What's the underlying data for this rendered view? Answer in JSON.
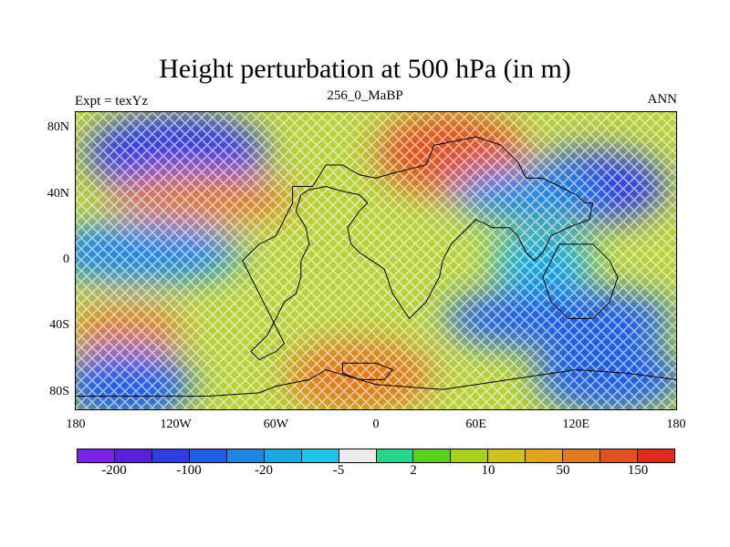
{
  "title": "Height perturbation at 500 hPa (in m)",
  "subtitle_left": "Expt = texYz",
  "subtitle_center": "256_0_MaBP",
  "subtitle_right": "ANN",
  "y_axis": {
    "ticks": [
      "80N",
      "40N",
      "0",
      "40S",
      "80S"
    ],
    "values": [
      80,
      40,
      0,
      -40,
      -80
    ],
    "range": [
      -90,
      90
    ]
  },
  "x_axis": {
    "ticks": [
      "180",
      "120W",
      "60W",
      "0",
      "60E",
      "120E",
      "180"
    ],
    "values": [
      -180,
      -120,
      -60,
      0,
      60,
      120,
      180
    ],
    "range": [
      -180,
      180
    ]
  },
  "colorbar": {
    "colors": [
      "#7a22e6",
      "#5a1fd8",
      "#2f3ce0",
      "#1f5ee6",
      "#1f86e6",
      "#19a9e0",
      "#1fc3e6",
      "#ececec",
      "#26d68a",
      "#5ad01f",
      "#a8d01f",
      "#cfc21f",
      "#e0a21f",
      "#e07a1f",
      "#e0521f",
      "#e02a1f"
    ],
    "labels": [
      "-200",
      "-100",
      "-20",
      "-5",
      "2",
      "10",
      "50",
      "150"
    ]
  },
  "field_blobs": [
    {
      "lon": -120,
      "lat": 65,
      "value": -110,
      "width": 55,
      "height": 16
    },
    {
      "lon": -105,
      "lat": 38,
      "value": 70,
      "width": 55,
      "height": 10
    },
    {
      "lon": -140,
      "lat": 5,
      "value": -40,
      "width": 60,
      "height": 12
    },
    {
      "lon": -150,
      "lat": -43,
      "value": 60,
      "width": 35,
      "height": 10
    },
    {
      "lon": -150,
      "lat": -75,
      "value": -60,
      "width": 40,
      "height": 14
    },
    {
      "lon": -10,
      "lat": -70,
      "value": 90,
      "width": 45,
      "height": 14
    },
    {
      "lon": 45,
      "lat": 65,
      "value": 150,
      "width": 45,
      "height": 16
    },
    {
      "lon": 130,
      "lat": 45,
      "value": -130,
      "width": 45,
      "height": 14
    },
    {
      "lon": 90,
      "lat": 40,
      "value": -40,
      "width": 45,
      "height": 10
    },
    {
      "lon": 110,
      "lat": -35,
      "value": -50,
      "width": 70,
      "height": 12
    },
    {
      "lon": 140,
      "lat": -70,
      "value": -70,
      "width": 45,
      "height": 14
    },
    {
      "lon": 100,
      "lat": 0,
      "value": -15,
      "width": 30,
      "height": 12
    }
  ],
  "continent_outlines": [
    [
      [
        -50,
        45
      ],
      [
        -38,
        45
      ],
      [
        -30,
        58
      ],
      [
        -20,
        58
      ],
      [
        -10,
        52
      ],
      [
        0,
        50
      ],
      [
        10,
        53
      ],
      [
        30,
        58
      ],
      [
        35,
        70
      ],
      [
        60,
        75
      ],
      [
        75,
        70
      ],
      [
        85,
        60
      ],
      [
        90,
        50
      ],
      [
        100,
        50
      ],
      [
        110,
        45
      ],
      [
        120,
        40
      ],
      [
        125,
        35
      ],
      [
        130,
        35
      ],
      [
        128,
        25
      ],
      [
        115,
        20
      ],
      [
        105,
        15
      ],
      [
        100,
        5
      ],
      [
        95,
        0
      ],
      [
        90,
        5
      ],
      [
        85,
        15
      ],
      [
        80,
        20
      ],
      [
        70,
        20
      ],
      [
        60,
        25
      ],
      [
        50,
        15
      ],
      [
        45,
        10
      ],
      [
        40,
        0
      ],
      [
        38,
        -10
      ],
      [
        30,
        -25
      ],
      [
        20,
        -35
      ],
      [
        10,
        -20
      ],
      [
        5,
        -5
      ],
      [
        -10,
        5
      ],
      [
        -15,
        10
      ],
      [
        -17,
        20
      ],
      [
        -10,
        30
      ],
      [
        -5,
        35
      ],
      [
        -10,
        40
      ],
      [
        -20,
        42
      ],
      [
        -30,
        45
      ],
      [
        -40,
        43
      ],
      [
        -45,
        40
      ],
      [
        -48,
        30
      ],
      [
        -42,
        20
      ],
      [
        -40,
        10
      ],
      [
        -45,
        0
      ],
      [
        -45,
        -10
      ],
      [
        -48,
        -20
      ],
      [
        -55,
        -25
      ],
      [
        -60,
        -35
      ],
      [
        -65,
        -45
      ],
      [
        -70,
        -50
      ],
      [
        -75,
        -55
      ],
      [
        -70,
        -60
      ],
      [
        -60,
        -55
      ],
      [
        -55,
        -50
      ],
      [
        -60,
        -40
      ],
      [
        -65,
        -30
      ],
      [
        -70,
        -20
      ],
      [
        -75,
        -10
      ],
      [
        -80,
        0
      ],
      [
        -75,
        5
      ],
      [
        -70,
        10
      ],
      [
        -60,
        15
      ],
      [
        -55,
        25
      ],
      [
        -50,
        35
      ],
      [
        -50,
        45
      ]
    ],
    [
      [
        110,
        10
      ],
      [
        130,
        10
      ],
      [
        140,
        0
      ],
      [
        145,
        -10
      ],
      [
        140,
        -25
      ],
      [
        130,
        -35
      ],
      [
        115,
        -35
      ],
      [
        105,
        -25
      ],
      [
        100,
        -10
      ],
      [
        105,
        0
      ],
      [
        110,
        10
      ]
    ],
    [
      [
        -20,
        -62
      ],
      [
        0,
        -62
      ],
      [
        10,
        -66
      ],
      [
        5,
        -72
      ],
      [
        -10,
        -72
      ],
      [
        -20,
        -68
      ],
      [
        -20,
        -62
      ]
    ],
    [
      [
        -180,
        -82
      ],
      [
        -100,
        -82
      ],
      [
        -70,
        -80
      ],
      [
        -60,
        -76
      ],
      [
        -40,
        -72
      ],
      [
        -30,
        -66
      ],
      [
        0,
        -75
      ],
      [
        40,
        -78
      ],
      [
        80,
        -72
      ],
      [
        120,
        -66
      ],
      [
        150,
        -68
      ],
      [
        180,
        -72
      ]
    ]
  ]
}
